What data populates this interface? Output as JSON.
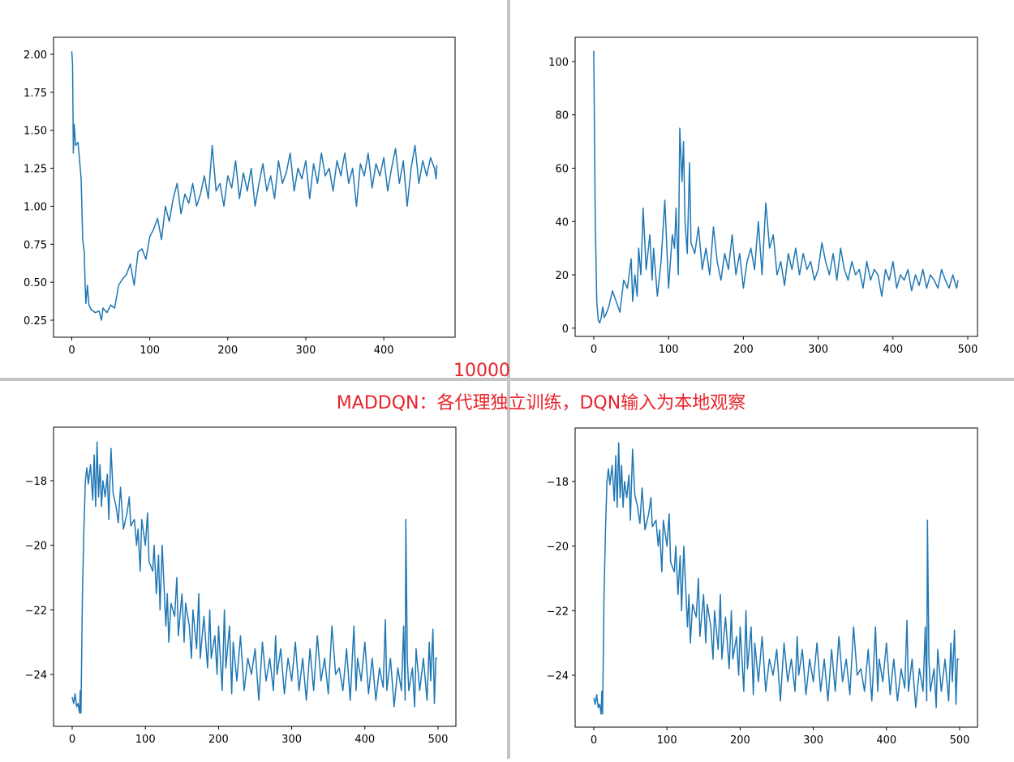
{
  "annotations": [
    "10000",
    "MADDQN：各代理独立训练，DQN输入为本地观察"
  ],
  "chart_data": [
    {
      "type": "line",
      "color": "#1f77b4",
      "xlim": [
        -23.4,
        491.4
      ],
      "ylim": [
        0.138,
        2.112
      ],
      "xticks": [
        0,
        100,
        200,
        300,
        400
      ],
      "yticks": [
        0.25,
        {
          "value": 0.5,
          "label": "0.50"
        },
        0.75,
        {
          "value": 1,
          "label": "1.00"
        },
        1.25,
        {
          "value": 1.5,
          "label": "1.50"
        },
        1.75,
        {
          "value": 2,
          "label": "2.00"
        }
      ],
      "x": [
        0,
        1,
        2,
        3,
        5,
        8,
        10,
        12,
        14,
        16,
        17,
        18,
        20,
        22,
        25,
        30,
        35,
        38,
        40,
        45,
        50,
        55,
        60,
        65,
        70,
        75,
        80,
        85,
        90,
        95,
        100,
        105,
        110,
        115,
        120,
        125,
        130,
        135,
        140,
        145,
        150,
        155,
        160,
        165,
        170,
        175,
        180,
        185,
        190,
        195,
        200,
        205,
        210,
        215,
        220,
        225,
        230,
        235,
        240,
        245,
        250,
        255,
        260,
        265,
        270,
        275,
        280,
        285,
        290,
        295,
        300,
        305,
        310,
        315,
        320,
        325,
        330,
        335,
        340,
        345,
        350,
        355,
        360,
        365,
        370,
        375,
        380,
        385,
        390,
        395,
        400,
        405,
        410,
        415,
        420,
        425,
        430,
        435,
        440,
        445,
        450,
        455,
        460,
        465,
        467,
        468
      ],
      "values": [
        2.02,
        1.93,
        1.35,
        1.54,
        1.4,
        1.42,
        1.3,
        1.18,
        0.78,
        0.7,
        0.5,
        0.36,
        0.48,
        0.35,
        0.32,
        0.3,
        0.31,
        0.25,
        0.33,
        0.3,
        0.35,
        0.33,
        0.48,
        0.52,
        0.55,
        0.62,
        0.48,
        0.7,
        0.72,
        0.65,
        0.8,
        0.85,
        0.92,
        0.78,
        1.0,
        0.9,
        1.05,
        1.15,
        0.95,
        1.08,
        1.02,
        1.15,
        1.0,
        1.08,
        1.2,
        1.05,
        1.4,
        1.1,
        1.15,
        1.0,
        1.2,
        1.12,
        1.3,
        1.05,
        1.22,
        1.1,
        1.25,
        1.0,
        1.15,
        1.28,
        1.1,
        1.2,
        1.05,
        1.3,
        1.15,
        1.22,
        1.35,
        1.1,
        1.25,
        1.18,
        1.3,
        1.05,
        1.28,
        1.15,
        1.35,
        1.2,
        1.25,
        1.1,
        1.3,
        1.2,
        1.35,
        1.15,
        1.25,
        1.0,
        1.28,
        1.2,
        1.35,
        1.12,
        1.28,
        1.2,
        1.32,
        1.1,
        1.25,
        1.38,
        1.15,
        1.3,
        1.0,
        1.25,
        1.4,
        1.15,
        1.3,
        1.2,
        1.32,
        1.25,
        1.18,
        1.27
      ]
    },
    {
      "type": "line",
      "color": "#1f77b4",
      "xlim": [
        -24.9,
        513
      ],
      "ylim": [
        -3.1,
        109.1
      ],
      "xticks": [
        0,
        100,
        200,
        300,
        400,
        500
      ],
      "yticks": [
        0,
        20,
        40,
        60,
        80,
        100
      ],
      "x": [
        0,
        2,
        4,
        6,
        8,
        10,
        12,
        14,
        16,
        20,
        25,
        30,
        35,
        40,
        45,
        50,
        52,
        55,
        58,
        60,
        63,
        66,
        70,
        75,
        78,
        80,
        85,
        90,
        95,
        100,
        105,
        108,
        110,
        113,
        115,
        118,
        120,
        122,
        125,
        128,
        130,
        135,
        140,
        145,
        150,
        155,
        160,
        165,
        170,
        175,
        180,
        185,
        190,
        195,
        200,
        205,
        210,
        215,
        220,
        225,
        230,
        235,
        240,
        245,
        250,
        255,
        260,
        265,
        270,
        275,
        280,
        285,
        290,
        295,
        300,
        305,
        310,
        315,
        320,
        325,
        330,
        335,
        340,
        345,
        350,
        355,
        360,
        365,
        370,
        375,
        380,
        385,
        390,
        395,
        400,
        405,
        410,
        415,
        420,
        425,
        430,
        435,
        440,
        445,
        450,
        455,
        460,
        465,
        470,
        475,
        480,
        485,
        487
      ],
      "values": [
        104,
        40,
        10,
        3,
        2,
        4,
        8,
        4,
        5,
        8,
        14,
        10,
        6,
        18,
        15,
        26,
        10,
        20,
        12,
        30,
        20,
        45,
        22,
        35,
        18,
        30,
        12,
        25,
        48,
        15,
        35,
        30,
        45,
        20,
        75,
        55,
        70,
        40,
        28,
        62,
        32,
        28,
        38,
        22,
        30,
        20,
        38,
        25,
        18,
        28,
        22,
        35,
        20,
        28,
        15,
        25,
        30,
        22,
        40,
        20,
        47,
        30,
        35,
        20,
        25,
        16,
        28,
        22,
        30,
        20,
        28,
        22,
        25,
        18,
        22,
        32,
        25,
        20,
        28,
        18,
        30,
        22,
        18,
        25,
        20,
        22,
        15,
        25,
        18,
        22,
        20,
        12,
        22,
        18,
        25,
        15,
        20,
        18,
        22,
        14,
        20,
        16,
        22,
        15,
        20,
        18,
        15,
        22,
        18,
        15,
        20,
        15,
        18
      ]
    },
    {
      "type": "line",
      "color": "#1f77b4",
      "xlim": [
        -25.5,
        524.4
      ],
      "ylim": [
        -25.607,
        -16.343
      ],
      "xticks": [
        0,
        100,
        200,
        300,
        400,
        500
      ],
      "yticks": [
        {
          "value": -24,
          "label": "−24"
        },
        {
          "value": -22,
          "label": "−22"
        },
        {
          "value": -20,
          "label": "−20"
        },
        {
          "value": -18,
          "label": "−18"
        }
      ],
      "x": [
        0,
        2,
        4,
        6,
        8,
        10,
        11,
        12,
        14,
        16,
        18,
        20,
        22,
        25,
        28,
        30,
        32,
        34,
        36,
        38,
        40,
        42,
        45,
        48,
        50,
        53,
        56,
        60,
        63,
        66,
        70,
        75,
        78,
        80,
        85,
        88,
        90,
        93,
        95,
        100,
        103,
        105,
        110,
        112,
        115,
        118,
        120,
        123,
        125,
        128,
        130,
        132,
        135,
        140,
        143,
        145,
        150,
        153,
        155,
        160,
        163,
        165,
        170,
        173,
        175,
        180,
        185,
        188,
        190,
        195,
        198,
        200,
        205,
        208,
        210,
        215,
        218,
        220,
        225,
        230,
        235,
        240,
        245,
        250,
        255,
        260,
        265,
        270,
        275,
        278,
        280,
        285,
        290,
        295,
        300,
        305,
        310,
        315,
        320,
        325,
        330,
        335,
        340,
        345,
        350,
        355,
        360,
        365,
        370,
        375,
        380,
        385,
        388,
        390,
        395,
        400,
        405,
        410,
        415,
        420,
        425,
        428,
        430,
        435,
        440,
        445,
        450,
        453,
        455,
        456,
        458,
        460,
        465,
        468,
        470,
        475,
        480,
        485,
        488,
        490,
        493,
        495,
        497,
        499
      ],
      "values": [
        -24.7,
        -24.9,
        -24.6,
        -25.0,
        -24.9,
        -25.2,
        -24.5,
        -25.2,
        -21.5,
        -19.5,
        -18.0,
        -17.6,
        -18.1,
        -17.5,
        -18.6,
        -17.2,
        -18.8,
        -16.8,
        -18.5,
        -17.5,
        -18.8,
        -18.0,
        -18.5,
        -17.8,
        -19.2,
        -17.0,
        -18.4,
        -18.8,
        -19.3,
        -18.2,
        -19.5,
        -19.0,
        -18.5,
        -19.4,
        -19.2,
        -20.0,
        -19.5,
        -20.8,
        -19.2,
        -20.0,
        -19.0,
        -20.5,
        -20.8,
        -20.0,
        -21.5,
        -20.3,
        -22.0,
        -20.0,
        -21.0,
        -22.5,
        -21.5,
        -23.0,
        -21.8,
        -22.2,
        -21.0,
        -22.8,
        -21.5,
        -23.0,
        -21.8,
        -22.5,
        -23.5,
        -22.0,
        -23.2,
        -21.5,
        -23.5,
        -22.2,
        -23.8,
        -22.0,
        -23.5,
        -22.8,
        -24.0,
        -22.5,
        -24.5,
        -22.0,
        -23.8,
        -22.5,
        -24.6,
        -23.0,
        -24.2,
        -22.8,
        -24.5,
        -23.5,
        -24.0,
        -23.2,
        -24.8,
        -23.0,
        -24.2,
        -23.5,
        -24.5,
        -22.8,
        -24.0,
        -23.2,
        -24.6,
        -23.5,
        -24.2,
        -23.0,
        -24.5,
        -23.5,
        -24.8,
        -23.2,
        -24.5,
        -22.8,
        -24.2,
        -23.5,
        -24.6,
        -22.5,
        -24.0,
        -23.8,
        -24.5,
        -23.2,
        -24.8,
        -22.5,
        -24.5,
        -23.5,
        -24.2,
        -23.0,
        -24.6,
        -23.5,
        -24.8,
        -23.8,
        -24.4,
        -22.3,
        -24.5,
        -23.5,
        -25.0,
        -23.8,
        -24.5,
        -22.5,
        -24.8,
        -19.2,
        -23.5,
        -24.5,
        -23.8,
        -25.0,
        -23.2,
        -24.5,
        -23.5,
        -24.8,
        -23.0,
        -24.2,
        -22.6,
        -24.9,
        -23.5,
        -23.5
      ]
    },
    {
      "type": "line",
      "color": "#1f77b4",
      "xlim": [
        -25.5,
        524.4
      ],
      "ylim": [
        -25.607,
        -16.343
      ],
      "xticks": [
        0,
        100,
        200,
        300,
        400,
        500
      ],
      "yticks": [
        {
          "value": -24,
          "label": "−24"
        },
        {
          "value": -22,
          "label": "−22"
        },
        {
          "value": -20,
          "label": "−20"
        },
        {
          "value": -18,
          "label": "−18"
        }
      ],
      "x": [
        0,
        2,
        4,
        6,
        8,
        10,
        11,
        12,
        14,
        16,
        18,
        20,
        22,
        25,
        28,
        30,
        32,
        34,
        36,
        38,
        40,
        42,
        45,
        48,
        50,
        53,
        56,
        60,
        63,
        66,
        70,
        75,
        78,
        80,
        85,
        88,
        90,
        93,
        95,
        100,
        103,
        105,
        110,
        112,
        115,
        118,
        120,
        123,
        125,
        128,
        130,
        132,
        135,
        140,
        143,
        145,
        150,
        153,
        155,
        160,
        163,
        165,
        170,
        173,
        175,
        180,
        185,
        188,
        190,
        195,
        198,
        200,
        205,
        208,
        210,
        215,
        218,
        220,
        225,
        230,
        235,
        240,
        245,
        250,
        255,
        260,
        265,
        270,
        275,
        278,
        280,
        285,
        290,
        295,
        300,
        305,
        310,
        315,
        320,
        325,
        330,
        335,
        340,
        345,
        350,
        355,
        360,
        365,
        370,
        375,
        380,
        385,
        388,
        390,
        395,
        400,
        405,
        410,
        415,
        420,
        425,
        428,
        430,
        435,
        440,
        445,
        450,
        453,
        455,
        456,
        458,
        460,
        465,
        468,
        470,
        475,
        480,
        485,
        488,
        490,
        493,
        495,
        497,
        499
      ],
      "values": [
        -24.7,
        -24.9,
        -24.6,
        -25.0,
        -24.9,
        -25.2,
        -24.5,
        -25.2,
        -21.5,
        -19.5,
        -18.0,
        -17.6,
        -18.1,
        -17.5,
        -18.6,
        -17.2,
        -18.8,
        -16.8,
        -18.5,
        -17.5,
        -18.8,
        -18.0,
        -18.5,
        -17.8,
        -19.2,
        -17.0,
        -18.4,
        -18.8,
        -19.3,
        -18.2,
        -19.5,
        -19.0,
        -18.5,
        -19.4,
        -19.2,
        -20.0,
        -19.5,
        -20.8,
        -19.2,
        -20.0,
        -19.0,
        -20.5,
        -20.8,
        -20.0,
        -21.5,
        -20.3,
        -22.0,
        -20.0,
        -21.0,
        -22.5,
        -21.5,
        -23.0,
        -21.8,
        -22.2,
        -21.0,
        -22.8,
        -21.5,
        -23.0,
        -21.8,
        -22.5,
        -23.5,
        -22.0,
        -23.2,
        -21.5,
        -23.5,
        -22.2,
        -23.8,
        -22.0,
        -23.5,
        -22.8,
        -24.0,
        -22.5,
        -24.5,
        -22.0,
        -23.8,
        -22.5,
        -24.6,
        -23.0,
        -24.2,
        -22.8,
        -24.5,
        -23.5,
        -24.0,
        -23.2,
        -24.8,
        -23.0,
        -24.2,
        -23.5,
        -24.5,
        -22.8,
        -24.0,
        -23.2,
        -24.6,
        -23.5,
        -24.2,
        -23.0,
        -24.5,
        -23.5,
        -24.8,
        -23.2,
        -24.5,
        -22.8,
        -24.2,
        -23.5,
        -24.6,
        -22.5,
        -24.0,
        -23.8,
        -24.5,
        -23.2,
        -24.8,
        -22.5,
        -24.5,
        -23.5,
        -24.2,
        -23.0,
        -24.6,
        -23.5,
        -24.8,
        -23.8,
        -24.4,
        -22.3,
        -24.5,
        -23.5,
        -25.0,
        -23.8,
        -24.5,
        -22.5,
        -24.8,
        -19.2,
        -23.5,
        -24.5,
        -23.8,
        -25.0,
        -23.2,
        -24.5,
        -23.5,
        -24.8,
        -23.0,
        -24.2,
        -22.6,
        -24.9,
        -23.5,
        -23.5
      ]
    }
  ]
}
